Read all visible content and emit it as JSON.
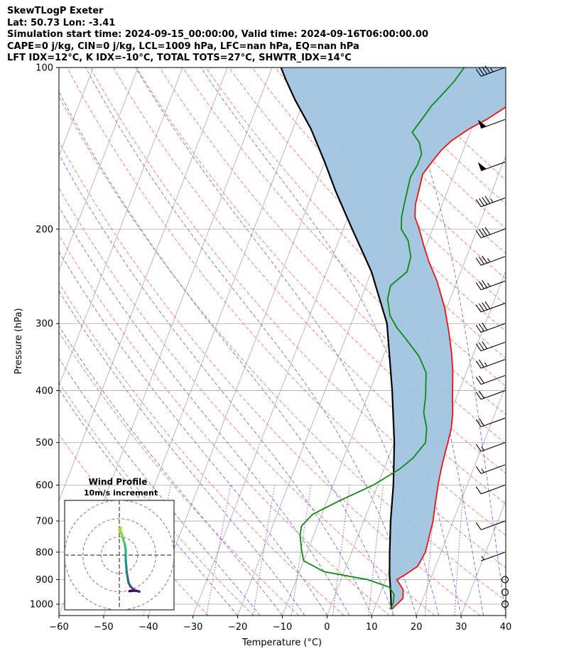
{
  "header": {
    "line1": "SkewTLogP Exeter",
    "line2": "Lat: 50.73   Lon: -3.41",
    "line3": "Simulation start time: 2024-09-15_00:00:00, Valid time: 2024-09-16T06:00:00.00",
    "line4": "CAPE=0 j/kg, CIN=0 j/kg, LCL=1009 hPa, LFC=nan hPa, EQ=nan hPa",
    "line5": "LFT IDX=12°C, K IDX=-10°C, TOTAL TOTS=27°C, SHWTR_IDX=14°C"
  },
  "colors": {
    "temperature": "#ee1111",
    "dewpoint": "#118811",
    "parcel": "#000000",
    "cape_fill": "#a0c4df",
    "dry_adiabats": "#ff6b6b",
    "moist_adiabats": "#5b6bf0",
    "mixing_ratio": "#8e44ad",
    "isotherms": "#a8a8a8"
  },
  "chart_data": [
    {
      "type": "line",
      "subtype": "skew-t log-p",
      "xlabel": "Temperature (°C)",
      "ylabel": "Pressure (hPa)",
      "xlim": [
        -60,
        40
      ],
      "ylim": [
        1050,
        100
      ],
      "yscale": "log",
      "grid": true,
      "xticks": [
        -60,
        -50,
        -40,
        -30,
        -20,
        -10,
        0,
        10,
        20,
        30,
        40
      ],
      "yticks": [
        100,
        200,
        300,
        400,
        500,
        600,
        700,
        800,
        900,
        1000
      ],
      "series": [
        {
          "key": "temperature",
          "points": [
            [
              14,
              1020
            ],
            [
              15.5,
              975
            ],
            [
              14.8,
              940
            ],
            [
              12.5,
              900
            ],
            [
              14,
              880
            ],
            [
              16,
              850
            ],
            [
              16.5,
              800
            ],
            [
              16,
              750
            ],
            [
              15.5,
              700
            ],
            [
              14.5,
              650
            ],
            [
              13.5,
              600
            ],
            [
              12.8,
              560
            ],
            [
              12.3,
              525
            ],
            [
              12,
              500
            ],
            [
              11.5,
              470
            ],
            [
              10.5,
              440
            ],
            [
              9,
              410
            ],
            [
              7,
              370
            ],
            [
              5,
              340
            ],
            [
              2.5,
              310
            ],
            [
              -0.5,
              280
            ],
            [
              -4.5,
              250
            ],
            [
              -8,
              230
            ],
            [
              -10.5,
              215
            ],
            [
              -13,
              200
            ],
            [
              -15,
              190
            ],
            [
              -16,
              180
            ],
            [
              -16.5,
              168
            ],
            [
              -17,
              158
            ],
            [
              -16,
              150
            ],
            [
              -15,
              143
            ],
            [
              -13.5,
              137
            ],
            [
              -10.5,
              130
            ],
            [
              -7.5,
              125
            ],
            [
              -4,
              118
            ],
            [
              -1.5,
              112
            ],
            [
              1,
              106
            ],
            [
              2.5,
              100
            ]
          ]
        },
        {
          "key": "dewpoint",
          "points": [
            [
              13.5,
              1022
            ],
            [
              13.8,
              1000
            ],
            [
              13.2,
              960
            ],
            [
              11.5,
              930
            ],
            [
              6,
              900
            ],
            [
              -4.5,
              870
            ],
            [
              -10,
              830
            ],
            [
              -11.5,
              790
            ],
            [
              -13,
              745
            ],
            [
              -13.5,
              715
            ],
            [
              -12,
              680
            ],
            [
              -7,
              640
            ],
            [
              -1,
              600
            ],
            [
              3.5,
              560
            ],
            [
              5.5,
              535
            ],
            [
              7,
              500
            ],
            [
              6,
              470
            ],
            [
              4,
              440
            ],
            [
              3,
              410
            ],
            [
              1,
              370
            ],
            [
              -2,
              345
            ],
            [
              -6.5,
              320
            ],
            [
              -9.5,
              305
            ],
            [
              -12,
              290
            ],
            [
              -14,
              270
            ],
            [
              -14.5,
              255
            ],
            [
              -12,
              240
            ],
            [
              -12.5,
              225
            ],
            [
              -14.5,
              210
            ],
            [
              -17,
              200
            ],
            [
              -18,
              190
            ],
            [
              -18.5,
              180
            ],
            [
              -19,
              170
            ],
            [
              -19.5,
              160
            ],
            [
              -19,
              152
            ],
            [
              -19,
              145
            ],
            [
              -20.5,
              138
            ],
            [
              -23,
              132
            ],
            [
              -22,
              125
            ],
            [
              -21,
              118
            ],
            [
              -19.5,
              112
            ],
            [
              -18,
              106
            ],
            [
              -17,
              100
            ]
          ]
        },
        {
          "key": "parcel",
          "points": [
            [
              13.8,
              1020
            ],
            [
              12.2,
              950
            ],
            [
              10.4,
              880
            ],
            [
              8.5,
              800
            ],
            [
              6,
              700
            ],
            [
              3.5,
              600
            ],
            [
              0,
              500
            ],
            [
              -5,
              400
            ],
            [
              -12,
              300
            ],
            [
              -20,
              240
            ],
            [
              -28,
              200
            ],
            [
              -35,
              170
            ],
            [
              -40,
              150
            ],
            [
              -46,
              130
            ],
            [
              -52,
              115
            ],
            [
              -56,
              105
            ],
            [
              -58,
              100
            ]
          ]
        }
      ],
      "wind_barbs": {
        "pressures": [
          100,
          125,
          150,
          175,
          200,
          225,
          250,
          275,
          300,
          325,
          350,
          375,
          400,
          450,
          500,
          550,
          600,
          700,
          800,
          900,
          950,
          1000
        ],
        "speeds_kt": [
          45,
          50,
          50,
          45,
          40,
          35,
          35,
          40,
          30,
          30,
          25,
          20,
          20,
          20,
          15,
          15,
          10,
          10,
          5,
          0,
          0,
          0
        ],
        "direction_deg": [
          250,
          250,
          250,
          250,
          250,
          250,
          250,
          250,
          250,
          250,
          250,
          250,
          250,
          250,
          250,
          250,
          250,
          250,
          250,
          0,
          0,
          0
        ]
      }
    },
    {
      "type": "scatter",
      "subtype": "hodograph",
      "title": "Wind Profile",
      "subtitle": "10m/s increment",
      "xlim": [
        -30,
        30
      ],
      "ylim": [
        -30,
        30
      ],
      "grid": false,
      "rings_ms": [
        10,
        20,
        30
      ],
      "points": [
        [
          1.5,
          12
        ],
        [
          0.5,
          13.5
        ],
        [
          1,
          15
        ],
        [
          0,
          14
        ],
        [
          1.5,
          11
        ],
        [
          2,
          9
        ],
        [
          3,
          6
        ],
        [
          3.5,
          3
        ],
        [
          3.5,
          0
        ],
        [
          3.5,
          -3
        ],
        [
          3.8,
          -6
        ],
        [
          4,
          -9
        ],
        [
          4.5,
          -12
        ],
        [
          5,
          -15
        ],
        [
          6,
          -17
        ],
        [
          7.5,
          -18.5
        ],
        [
          9,
          -19.5
        ],
        [
          11,
          -20
        ],
        [
          9.5,
          -19.6
        ],
        [
          7,
          -19.6
        ],
        [
          5.5,
          -19.8
        ]
      ],
      "colormap": "viridis-reversed"
    }
  ]
}
